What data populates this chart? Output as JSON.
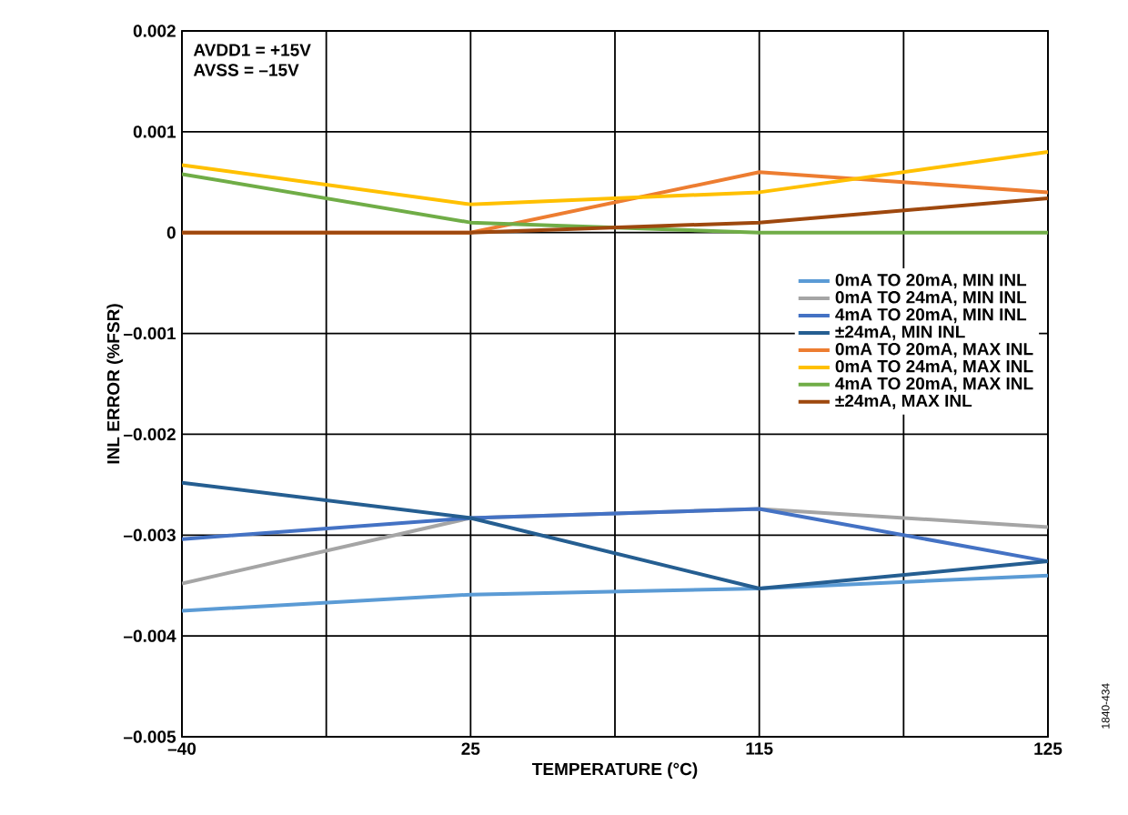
{
  "chart_data": {
    "type": "line",
    "xlabel": "TEMPERATURE (°C)",
    "ylabel": "INL ERROR (%FSR)",
    "categories": [
      "–40",
      "25",
      "115",
      "125"
    ],
    "ylim": [
      -0.005,
      0.002
    ],
    "yticks": [
      {
        "value": 0.002,
        "label": "0.002"
      },
      {
        "value": 0.001,
        "label": "0.001"
      },
      {
        "value": 0,
        "label": "0"
      },
      {
        "value": -0.001,
        "label": "–0.001"
      },
      {
        "value": -0.002,
        "label": "–0.002"
      },
      {
        "value": -0.003,
        "label": "–0.003"
      },
      {
        "value": -0.004,
        "label": "–0.004"
      },
      {
        "value": -0.005,
        "label": "–0.005"
      }
    ],
    "grid": true,
    "legend": "right",
    "marker": "none",
    "line_style": "solid",
    "annotations": [
      "AVDD1 = +15V",
      "AVSS = –15V",
      "1840-434"
    ],
    "series": [
      {
        "name": "0mA TO 20mA, MIN INL",
        "color": "#5b9bd5",
        "values": [
          -0.00375,
          -0.00359,
          -0.00353,
          -0.0034
        ]
      },
      {
        "name": "0mA TO 24mA, MIN INL",
        "color": "#a5a5a5",
        "values": [
          -0.00348,
          -0.00283,
          -0.00274,
          -0.00292
        ]
      },
      {
        "name": "4mA TO 20mA, MIN INL",
        "color": "#4472c4",
        "values": [
          -0.00304,
          -0.00283,
          -0.00274,
          -0.00326
        ]
      },
      {
        "name": "±24mA, MIN INL",
        "color": "#255e91",
        "values": [
          -0.00248,
          -0.00283,
          -0.00353,
          -0.00326
        ]
      },
      {
        "name": "0mA TO 20mA, MAX INL",
        "color": "#ed7d31",
        "values": [
          0,
          0,
          0.0006,
          0.0004
        ]
      },
      {
        "name": "0mA TO 24mA, MAX INL",
        "color": "#ffc000",
        "values": [
          0.00067,
          0.00028,
          0.0004,
          0.0008
        ]
      },
      {
        "name": "4mA TO 20mA, MAX INL",
        "color": "#70ad47",
        "values": [
          0.00058,
          0.0001,
          0,
          0
        ]
      },
      {
        "name": "±24mA, MAX INL",
        "color": "#9e480e",
        "values": [
          0,
          0,
          0.0001,
          0.00034
        ]
      }
    ]
  }
}
